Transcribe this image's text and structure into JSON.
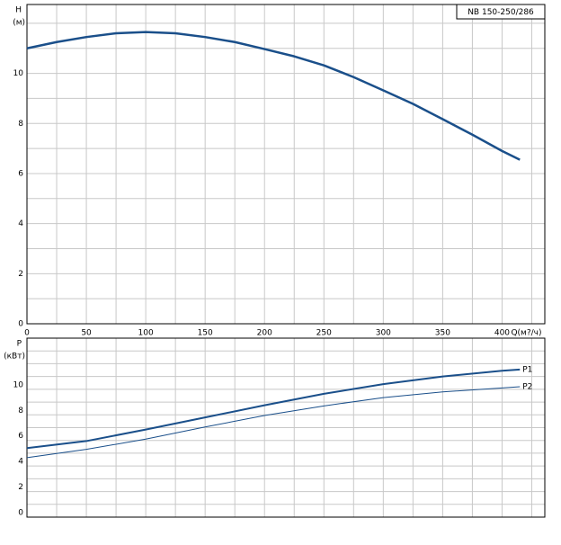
{
  "chart_data": [
    {
      "type": "line",
      "title": "NB 150-250/286",
      "ylabel": "H",
      "yunit": "(м)",
      "xlabel": "Q(м?/ч)",
      "x": [
        0,
        25,
        50,
        75,
        100,
        125,
        150,
        175,
        200,
        225,
        250,
        275,
        300,
        325,
        350,
        375,
        400,
        415
      ],
      "series": [
        {
          "name": "H",
          "color": "#1a4f8a",
          "values": [
            11.0,
            11.25,
            11.45,
            11.6,
            11.65,
            11.6,
            11.45,
            11.25,
            10.97,
            10.68,
            10.32,
            9.85,
            9.32,
            8.78,
            8.17,
            7.55,
            6.9,
            6.55
          ]
        }
      ],
      "xlim": [
        0,
        436
      ],
      "ylim": [
        0,
        12.75
      ],
      "xticks": [
        0,
        50,
        100,
        150,
        200,
        250,
        300,
        350,
        400
      ],
      "yticks": [
        0,
        2,
        4,
        6,
        8,
        10
      ],
      "xgrid": [
        0,
        25,
        50,
        75,
        100,
        125,
        150,
        175,
        200,
        225,
        250,
        275,
        300,
        325,
        350,
        375,
        400,
        425
      ],
      "ygrid": [
        0,
        1,
        2,
        3,
        4,
        5,
        6,
        7,
        8,
        9,
        10,
        11,
        12
      ],
      "grid": true
    },
    {
      "type": "line",
      "ylabel": "P",
      "yunit": "(кВт)",
      "x": [
        0,
        50,
        100,
        150,
        200,
        250,
        300,
        350,
        400,
        415
      ],
      "series": [
        {
          "name": "P1",
          "color": "#1a4f8a",
          "values": [
            5.4,
            5.95,
            6.85,
            7.8,
            8.75,
            9.65,
            10.4,
            11.0,
            11.45,
            11.55
          ]
        },
        {
          "name": "P2",
          "color": "#1a4f8a",
          "values": [
            4.65,
            5.3,
            6.1,
            7.05,
            7.95,
            8.7,
            9.35,
            9.8,
            10.1,
            10.2
          ]
        }
      ],
      "xlim": [
        0,
        436
      ],
      "ylim": [
        0,
        14
      ],
      "yticks": [
        0,
        2,
        4,
        6,
        8,
        10
      ],
      "xgrid": [
        0,
        25,
        50,
        75,
        100,
        125,
        150,
        175,
        200,
        225,
        250,
        275,
        300,
        325,
        350,
        375,
        400,
        425
      ],
      "ygrid": [
        0,
        1,
        2,
        3,
        4,
        5,
        6,
        7,
        8,
        9,
        10,
        11,
        12,
        13
      ],
      "grid": true
    }
  ]
}
